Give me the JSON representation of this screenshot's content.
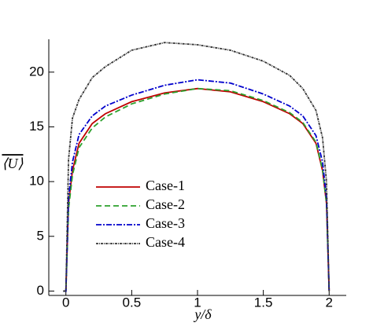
{
  "chart_data": {
    "type": "line",
    "x_label": "y/δ",
    "y_label": "⟨U⟩",
    "x": [
      -0.02,
      0,
      0.02,
      0.05,
      0.1,
      0.2,
      0.3,
      0.5,
      0.75,
      1.0,
      1.25,
      1.5,
      1.7,
      1.8,
      1.9,
      1.95,
      1.98,
      2.0
    ],
    "series": [
      {
        "name": "Case-1",
        "color": "#c00000",
        "dash": "",
        "values": [
          0,
          0,
          8,
          11,
          13.5,
          15.3,
          16.2,
          17.3,
          18.1,
          18.5,
          18.2,
          17.3,
          16.2,
          15.3,
          13.5,
          11,
          8,
          0
        ]
      },
      {
        "name": "Case-2",
        "color": "#2ca02c",
        "dash": "7 4",
        "values": [
          0,
          0,
          7.5,
          10.6,
          13.1,
          14.9,
          15.9,
          17.1,
          18.0,
          18.5,
          18.3,
          17.4,
          16.3,
          15.4,
          13.6,
          11.1,
          8,
          0
        ]
      },
      {
        "name": "Case-3",
        "color": "#0000cc",
        "dash": "7 2 2 2",
        "values": [
          0,
          0,
          8.5,
          11.8,
          14.3,
          16.0,
          16.9,
          17.9,
          18.8,
          19.3,
          19.0,
          18.0,
          16.9,
          16.0,
          14.2,
          11.8,
          8.5,
          0
        ]
      },
      {
        "name": "Case-4",
        "color": "#333333",
        "dash": "3 1 1 1",
        "values": [
          0,
          0,
          12,
          15.8,
          17.5,
          19.5,
          20.5,
          22.0,
          22.7,
          22.5,
          22.0,
          21.0,
          19.7,
          18.5,
          16.5,
          14,
          10,
          0
        ]
      }
    ],
    "xlim": [
      -0.13,
      2.13
    ],
    "ylim": [
      -0.4,
      23
    ],
    "xticks": [
      0,
      0.5,
      1,
      1.5,
      2
    ],
    "yticks": [
      0,
      5,
      10,
      15,
      20
    ]
  }
}
